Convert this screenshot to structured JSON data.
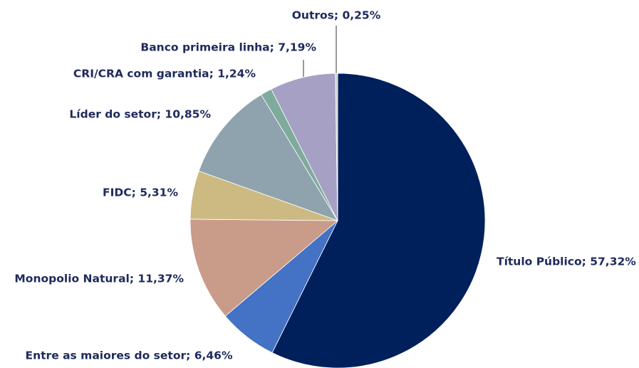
{
  "chart_data": {
    "type": "pie",
    "values": [
      57.32,
      6.46,
      11.37,
      5.31,
      10.85,
      1.24,
      7.19,
      0.25
    ],
    "value_labels": [
      "Título Público; 57,32%",
      "Entre as maiores do setor; 6,46%",
      "Monopolio Natural; 11,37%",
      "FIDC; 5,31%",
      "Líder do setor; 10,85%",
      "CRI/CRA com garantia; 1,24%",
      "Banco primeira linha; 7,19%",
      "Outros; 0,25%"
    ],
    "colors": [
      "#00205b",
      "#4472c4",
      "#c99b89",
      "#cdba82",
      "#8fa3ae",
      "#7fab9c",
      "#a6a1c4",
      "#cfcfcf"
    ]
  }
}
